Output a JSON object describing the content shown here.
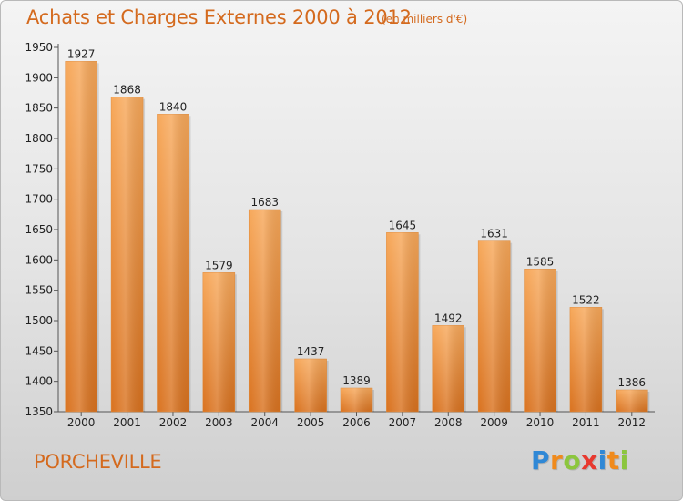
{
  "header": {
    "title": "Achats et Charges Externes 2000 à 2012",
    "unit": "(en milliers d'€)"
  },
  "footer": {
    "town": "PORCHEVILLE",
    "logo_letters": [
      {
        "ch": "P",
        "color": "#2f88d6"
      },
      {
        "ch": "r",
        "color": "#f08a1c"
      },
      {
        "ch": "o",
        "color": "#8cc63e"
      },
      {
        "ch": "x",
        "color": "#e8392f"
      },
      {
        "ch": "i",
        "color": "#2f88d6"
      },
      {
        "ch": "t",
        "color": "#f08a1c"
      },
      {
        "ch": "i",
        "color": "#8cc63e"
      }
    ]
  },
  "colors": {
    "bar_light": "#f7a85a",
    "bar_dark": "#d9721f",
    "accent_text": "#d46a1e"
  },
  "chart_data": {
    "type": "bar",
    "title": "Achats et Charges Externes 2000 à 2012",
    "subtitle": "(en milliers d'€)",
    "xlabel": "",
    "ylabel": "",
    "categories": [
      "2000",
      "2001",
      "2002",
      "2003",
      "2004",
      "2005",
      "2006",
      "2007",
      "2008",
      "2009",
      "2010",
      "2011",
      "2012"
    ],
    "values": [
      1927,
      1868,
      1840,
      1579,
      1683,
      1437,
      1389,
      1645,
      1492,
      1631,
      1585,
      1522,
      1386
    ],
    "ylim": [
      1350,
      1950
    ],
    "yticks": [
      1350,
      1400,
      1450,
      1500,
      1550,
      1600,
      1650,
      1700,
      1750,
      1800,
      1850,
      1900,
      1950
    ],
    "grid": false,
    "legend": "none"
  }
}
